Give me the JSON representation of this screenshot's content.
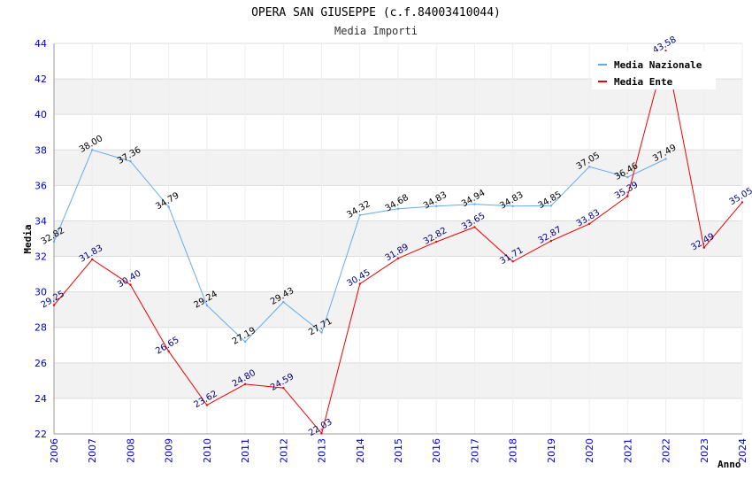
{
  "chart_data": {
    "type": "line",
    "title": "OPERA SAN GIUSEPPE (c.f.84003410044)",
    "subtitle": "Media Importi",
    "xlabel": "Anno",
    "ylabel": "Media",
    "ylim": [
      22,
      44
    ],
    "y_ticks": [
      22,
      24,
      26,
      28,
      30,
      32,
      34,
      36,
      38,
      40,
      42,
      44
    ],
    "x": [
      2006,
      2007,
      2008,
      2009,
      2010,
      2011,
      2012,
      2013,
      2014,
      2015,
      2016,
      2017,
      2018,
      2019,
      2020,
      2021,
      2022,
      2023,
      2024
    ],
    "legend_position": "top-right",
    "series": [
      {
        "name": "Media Nazionale",
        "color": "#66aaee",
        "label_color": "#000000",
        "values": [
          32.82,
          38.0,
          37.36,
          34.79,
          29.24,
          27.19,
          29.43,
          27.71,
          34.32,
          34.68,
          34.83,
          34.94,
          34.83,
          34.85,
          37.05,
          36.46,
          37.49,
          null,
          null
        ],
        "labels": [
          "32.82",
          "38.00",
          "37.36",
          "34.79",
          "29.24",
          "27.19",
          "29.43",
          "27.71",
          "34.32",
          "34.68",
          "34.83",
          "34.94",
          "34.83",
          "34.85",
          "37.05",
          "36.46",
          "37.49",
          null,
          null
        ]
      },
      {
        "name": "Media Ente",
        "color": "#ee0000",
        "label_color": "#000080",
        "values": [
          29.25,
          31.83,
          30.4,
          26.65,
          23.62,
          24.8,
          24.59,
          22.03,
          30.45,
          31.89,
          32.82,
          33.65,
          31.71,
          32.87,
          33.83,
          35.39,
          43.58,
          32.49,
          35.05
        ],
        "labels": [
          "29.25",
          "31.83",
          "30.40",
          "26.65",
          "23.62",
          "24.80",
          "24.59",
          "22.03",
          "30.45",
          "31.89",
          "32.82",
          "33.65",
          "31.71",
          "32.87",
          "33.83",
          "35.39",
          "43.58",
          "32.49",
          "35.05"
        ]
      }
    ]
  }
}
